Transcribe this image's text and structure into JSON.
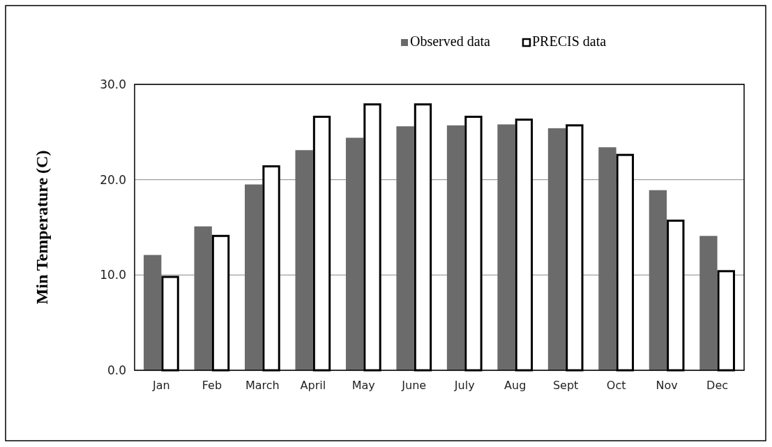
{
  "chart_data": {
    "type": "bar",
    "ylabel": "Min Temperature (C)",
    "categories": [
      "Jan",
      "Feb",
      "March",
      "April",
      "May",
      "June",
      "July",
      "Aug",
      "Sept",
      "Oct",
      "Nov",
      "Dec"
    ],
    "series": [
      {
        "name": "Observed data",
        "color": "#6b6b6b",
        "values": [
          12.1,
          15.1,
          19.5,
          23.1,
          24.4,
          25.6,
          25.7,
          25.8,
          25.4,
          23.4,
          18.9,
          14.1
        ]
      },
      {
        "name": "PRECIS data",
        "color": "#ffffff",
        "values": [
          9.8,
          14.1,
          21.4,
          26.6,
          27.9,
          27.9,
          26.6,
          26.3,
          25.7,
          22.6,
          15.7,
          10.4
        ]
      }
    ],
    "ylim": [
      0,
      30
    ],
    "yticks": [
      {
        "value": 0,
        "label": "0.0"
      },
      {
        "value": 10,
        "label": "10.0"
      },
      {
        "value": 20,
        "label": "20.0"
      },
      {
        "value": 30,
        "label": "30.0"
      }
    ],
    "grid": "y",
    "legend": "top right"
  }
}
